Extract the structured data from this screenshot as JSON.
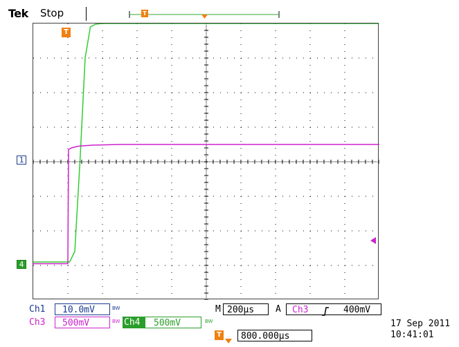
{
  "header": {
    "brand": "Tek",
    "acquisition_state": "Stop"
  },
  "colors": {
    "ch1": "#1a3a8f",
    "ch3": "#cc22cc",
    "ch4": "#33cc33",
    "trigger": "#f08010",
    "grid": "#000000"
  },
  "markers": {
    "ch1": "1",
    "ch4": "4",
    "trigger": "T"
  },
  "channels": {
    "ch1": {
      "label": "Ch1",
      "scale": "10.0mV",
      "bw": "BW"
    },
    "ch3": {
      "label": "Ch3",
      "scale": "500mV",
      "bw": "BW"
    },
    "ch4": {
      "label": "Ch4",
      "scale": "500mV",
      "bw": "BW"
    }
  },
  "timebase": {
    "prefix": "M",
    "value": "200µs"
  },
  "trigger": {
    "prefix": "A",
    "source": "Ch3",
    "slope": "rising-edge-icon",
    "level": "400mV",
    "position": "800.000µs"
  },
  "timestamp": {
    "date": "17 Sep 2011",
    "time": "10:41:01"
  },
  "chart_data": {
    "type": "line",
    "x_divisions": 10,
    "y_divisions": 8,
    "x_per_div": "200µs",
    "series": [
      {
        "name": "Ch4",
        "color": "#33cc33",
        "x_div": [
          0,
          1.05,
          1.2,
          1.35,
          1.5,
          1.65,
          1.8,
          2.0,
          2.5,
          10
        ],
        "y_div": [
          -2.9,
          -2.9,
          -2.6,
          0,
          3.0,
          3.9,
          3.98,
          4.0,
          4.0,
          4.0
        ]
      },
      {
        "name": "Ch3",
        "color": "#cc22cc",
        "x_div": [
          0,
          1.0,
          1.02,
          1.1,
          1.3,
          1.7,
          2.5,
          10
        ],
        "y_div": [
          -2.95,
          -2.95,
          0.35,
          0.4,
          0.45,
          0.48,
          0.5,
          0.5
        ]
      }
    ]
  }
}
